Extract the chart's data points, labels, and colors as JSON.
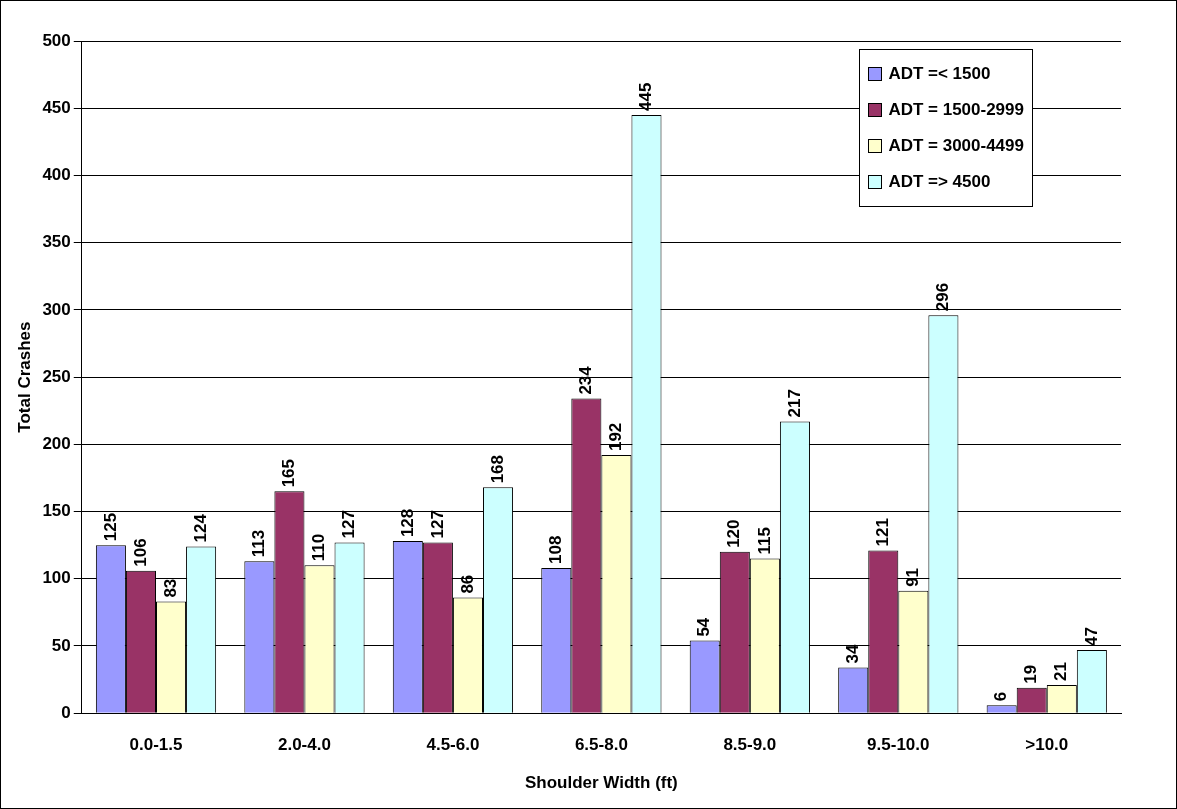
{
  "chart_data": {
    "type": "bar",
    "xlabel": "Shoulder Width (ft)",
    "ylabel": "Total Crashes",
    "categories": [
      "0.0-1.5",
      "2.0-4.0",
      "4.5-6.0",
      "6.5-8.0",
      "8.5-9.0",
      "9.5-10.0",
      ">10.0"
    ],
    "series": [
      {
        "name": "ADT =< 1500",
        "color": "#9999ff",
        "values": [
          125,
          113,
          128,
          108,
          54,
          34,
          6
        ]
      },
      {
        "name": "ADT = 1500-2999",
        "color": "#993366",
        "values": [
          106,
          165,
          127,
          234,
          120,
          121,
          19
        ]
      },
      {
        "name": "ADT = 3000-4499",
        "color": "#ffffcc",
        "values": [
          83,
          110,
          86,
          192,
          115,
          91,
          21
        ]
      },
      {
        "name": "ADT => 4500",
        "color": "#ccffff",
        "values": [
          124,
          127,
          168,
          445,
          217,
          296,
          47
        ]
      }
    ],
    "ylim": [
      0,
      500
    ],
    "yticks": [
      0,
      50,
      100,
      150,
      200,
      250,
      300,
      350,
      400,
      450,
      500
    ],
    "grid": "y",
    "legend": "top right",
    "data_labels": true
  }
}
